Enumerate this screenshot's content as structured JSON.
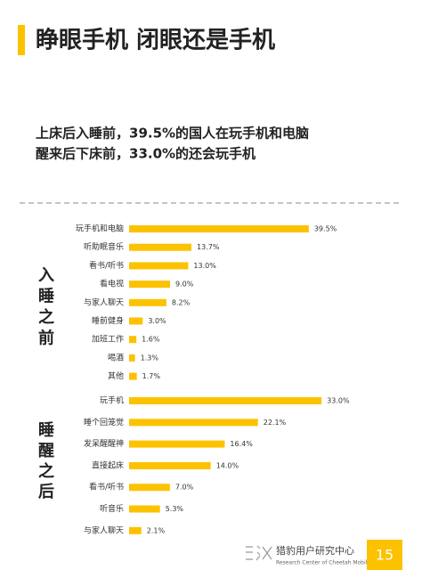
{
  "header": {
    "title": "睁眼手机 闭眼还是手机",
    "subtitle": [
      "上床后入睡前，39.5%的国人在玩手机和电脑",
      "醒来后下床前，33.0%的还会玩手机"
    ]
  },
  "chart_data": [
    {
      "type": "bar",
      "orientation": "horizontal",
      "title": "入睡之前",
      "color": "#fcc200",
      "categories": [
        "玩手机和电脑",
        "听助眠音乐",
        "看书/听书",
        "看电视",
        "与家人聊天",
        "睡前健身",
        "加班工作",
        "喝酒",
        "其他"
      ],
      "values": [
        39.5,
        13.7,
        13.0,
        9.0,
        8.2,
        3.0,
        1.6,
        1.3,
        1.7
      ],
      "value_labels": [
        "39.5%",
        "13.7%",
        "13.0%",
        "9.0%",
        "8.2%",
        "3.0%",
        "1.6%",
        "1.3%",
        "1.7%"
      ]
    },
    {
      "type": "bar",
      "orientation": "horizontal",
      "title": "睡醒之后",
      "color": "#fcc200",
      "categories": [
        "玩手机",
        "睡个回笼觉",
        "发呆醒醒神",
        "直接起床",
        "看书/听书",
        "听音乐",
        "与家人聊天"
      ],
      "values": [
        33.0,
        22.1,
        16.4,
        14.0,
        7.0,
        5.3,
        2.1
      ],
      "value_labels": [
        "33.0%",
        "22.1%",
        "16.4%",
        "14.0%",
        "7.0%",
        "5.3%",
        "2.1%"
      ]
    }
  ],
  "footer": {
    "org": "猎豹用户研究中心",
    "org_en": "Research Center of Cheetah Mobile",
    "page": "15"
  }
}
